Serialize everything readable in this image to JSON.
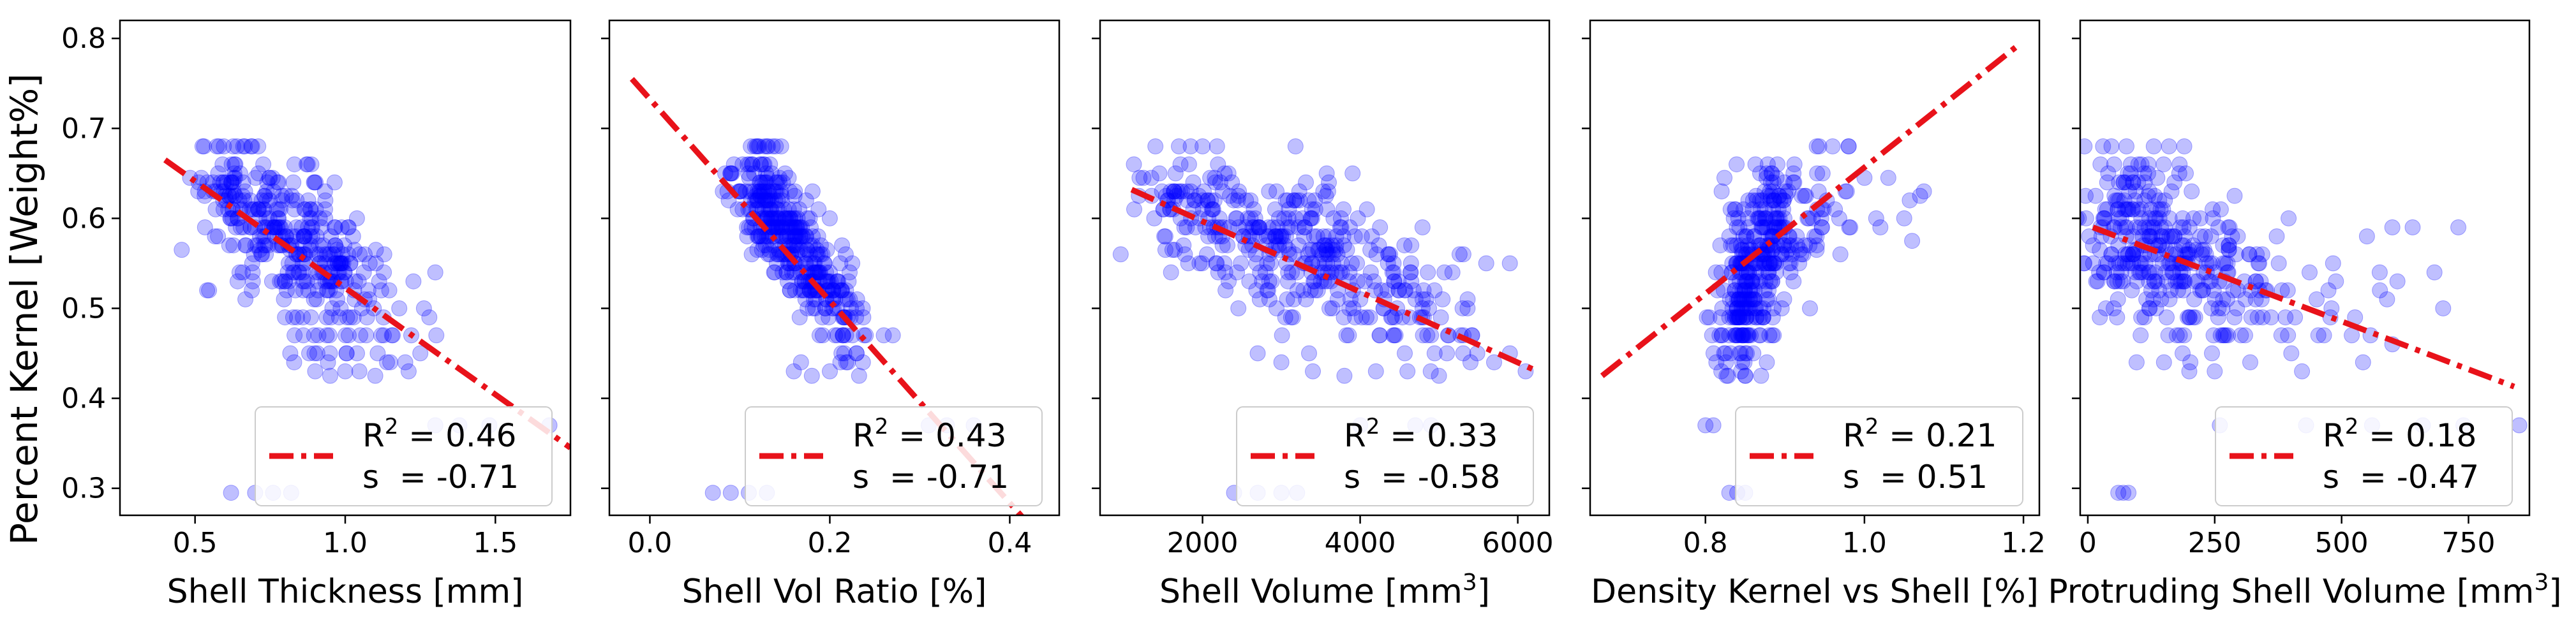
{
  "figure": {
    "shared_ylabel": "Percent Kernel [Weight%]"
  },
  "chart_data": [
    {
      "type": "scatter",
      "xlabel": "Shell Thickness [mm]",
      "ylabel": "Percent Kernel [Weight%]",
      "xlim": [
        0.25,
        1.75
      ],
      "ylim": [
        0.27,
        0.82
      ],
      "xticks": [
        {
          "v": 0.5,
          "label": "0.5"
        },
        {
          "v": 1.0,
          "label": "1.0"
        },
        {
          "v": 1.5,
          "label": "1.5"
        }
      ],
      "yticks": [
        {
          "v": 0.3,
          "label": "0.3"
        },
        {
          "v": 0.4,
          "label": "0.4"
        },
        {
          "v": 0.5,
          "label": "0.5"
        },
        {
          "v": 0.6,
          "label": "0.6"
        },
        {
          "v": 0.7,
          "label": "0.7"
        },
        {
          "v": 0.8,
          "label": "0.8"
        }
      ],
      "point_color": "#0000ff",
      "line_color": "#e8121a",
      "fit_line": {
        "x": [
          0.4,
          1.75
        ],
        "y": [
          0.665,
          0.345
        ]
      },
      "clusters": [
        {
          "cx": 0.82,
          "cy": 0.575,
          "sx": 0.14,
          "sy": 0.045,
          "n": 260,
          "rho": -0.55
        },
        {
          "cx": 1.02,
          "cy": 0.51,
          "sx": 0.13,
          "sy": 0.04,
          "n": 60,
          "rho": -0.3
        },
        {
          "cx": 0.62,
          "cy": 0.64,
          "sx": 0.06,
          "sy": 0.025,
          "n": 50,
          "rho": 0
        }
      ],
      "extra_points": [
        {
          "x": 0.53,
          "y": 0.68
        },
        {
          "x": 0.58,
          "y": 0.68
        },
        {
          "x": 0.64,
          "y": 0.68
        },
        {
          "x": 0.9,
          "y": 0.43
        },
        {
          "x": 0.95,
          "y": 0.425
        },
        {
          "x": 1.0,
          "y": 0.43
        },
        {
          "x": 1.1,
          "y": 0.425
        },
        {
          "x": 1.15,
          "y": 0.44
        },
        {
          "x": 1.2,
          "y": 0.44
        },
        {
          "x": 1.25,
          "y": 0.45
        },
        {
          "x": 1.22,
          "y": 0.47
        },
        {
          "x": 1.28,
          "y": 0.49
        },
        {
          "x": 1.3,
          "y": 0.54
        },
        {
          "x": 1.07,
          "y": 0.47
        },
        {
          "x": 1.12,
          "y": 0.47
        },
        {
          "x": 1.18,
          "y": 0.5
        },
        {
          "x": 1.13,
          "y": 0.56
        },
        {
          "x": 0.83,
          "y": 0.44
        },
        {
          "x": 0.88,
          "y": 0.45
        },
        {
          "x": 1.3,
          "y": 0.37
        },
        {
          "x": 1.38,
          "y": 0.37
        },
        {
          "x": 1.48,
          "y": 0.37
        },
        {
          "x": 1.68,
          "y": 0.37
        },
        {
          "x": 0.62,
          "y": 0.295
        },
        {
          "x": 0.7,
          "y": 0.295
        },
        {
          "x": 0.76,
          "y": 0.295
        },
        {
          "x": 0.82,
          "y": 0.295
        }
      ],
      "legend": {
        "r2_label": "R",
        "r2_value": "= 0.46",
        "s_label": "s",
        "s_value": "= -0.71",
        "placement": "lower-right"
      }
    },
    {
      "type": "scatter",
      "xlabel": "Shell Vol Ratio [%]",
      "ylabel": "",
      "xlim": [
        -0.045,
        0.455
      ],
      "ylim": [
        0.27,
        0.82
      ],
      "xticks": [
        {
          "v": 0.0,
          "label": "0.0"
        },
        {
          "v": 0.2,
          "label": "0.2"
        },
        {
          "v": 0.4,
          "label": "0.4"
        }
      ],
      "yticks": [
        {
          "v": 0.3,
          "label": ""
        },
        {
          "v": 0.4,
          "label": ""
        },
        {
          "v": 0.5,
          "label": ""
        },
        {
          "v": 0.6,
          "label": ""
        },
        {
          "v": 0.7,
          "label": ""
        },
        {
          "v": 0.8,
          "label": ""
        }
      ],
      "point_color": "#0000ff",
      "line_color": "#e8121a",
      "fit_line": {
        "x": [
          -0.02,
          0.43
        ],
        "y": [
          0.755,
          0.25
        ]
      },
      "clusters": [
        {
          "cx": 0.16,
          "cy": 0.57,
          "sx": 0.032,
          "sy": 0.05,
          "n": 270,
          "rho": -0.75
        },
        {
          "cx": 0.13,
          "cy": 0.62,
          "sx": 0.018,
          "sy": 0.03,
          "n": 60,
          "rho": -0.3
        },
        {
          "cx": 0.2,
          "cy": 0.5,
          "sx": 0.02,
          "sy": 0.035,
          "n": 50,
          "rho": -0.4
        }
      ],
      "extra_points": [
        {
          "x": 0.12,
          "y": 0.68
        },
        {
          "x": 0.13,
          "y": 0.68
        },
        {
          "x": 0.14,
          "y": 0.68
        },
        {
          "x": 0.16,
          "y": 0.43
        },
        {
          "x": 0.18,
          "y": 0.425
        },
        {
          "x": 0.2,
          "y": 0.43
        },
        {
          "x": 0.22,
          "y": 0.44
        },
        {
          "x": 0.24,
          "y": 0.47
        },
        {
          "x": 0.26,
          "y": 0.47
        },
        {
          "x": 0.27,
          "y": 0.47
        },
        {
          "x": 0.31,
          "y": 0.37
        },
        {
          "x": 0.33,
          "y": 0.37
        },
        {
          "x": 0.36,
          "y": 0.37
        },
        {
          "x": 0.07,
          "y": 0.295
        },
        {
          "x": 0.09,
          "y": 0.295
        },
        {
          "x": 0.11,
          "y": 0.295
        },
        {
          "x": 0.13,
          "y": 0.295
        }
      ],
      "legend": {
        "r2_label": "R",
        "r2_value": "= 0.43",
        "s_label": "s",
        "s_value": "= -0.71",
        "placement": "lower-right"
      }
    },
    {
      "type": "scatter",
      "xlabel": "Shell Volume [mm",
      "xlabel_sup": "3",
      "xlabel_suffix": "]",
      "ylabel": "",
      "xlim": [
        700,
        6400
      ],
      "ylim": [
        0.27,
        0.82
      ],
      "xticks": [
        {
          "v": 2000,
          "label": "2000"
        },
        {
          "v": 4000,
          "label": "4000"
        },
        {
          "v": 6000,
          "label": "6000"
        }
      ],
      "yticks": [
        {
          "v": 0.3,
          "label": ""
        },
        {
          "v": 0.4,
          "label": ""
        },
        {
          "v": 0.5,
          "label": ""
        },
        {
          "v": 0.6,
          "label": ""
        },
        {
          "v": 0.7,
          "label": ""
        },
        {
          "v": 0.8,
          "label": ""
        }
      ],
      "point_color": "#0000ff",
      "line_color": "#e8121a",
      "fit_line": {
        "x": [
          1100,
          6200
        ],
        "y": [
          0.632,
          0.432
        ]
      },
      "clusters": [
        {
          "cx": 3000,
          "cy": 0.57,
          "sx": 800,
          "sy": 0.045,
          "n": 280,
          "rho": -0.45
        },
        {
          "cx": 4400,
          "cy": 0.5,
          "sx": 700,
          "sy": 0.04,
          "n": 70,
          "rho": -0.3
        },
        {
          "cx": 1700,
          "cy": 0.625,
          "sx": 350,
          "sy": 0.03,
          "n": 40,
          "rho": 0
        }
      ],
      "extra_points": [
        {
          "x": 1700,
          "y": 0.68
        },
        {
          "x": 1850,
          "y": 0.68
        },
        {
          "x": 2000,
          "y": 0.68
        },
        {
          "x": 1200,
          "y": 0.645
        },
        {
          "x": 1350,
          "y": 0.645
        },
        {
          "x": 3400,
          "y": 0.43
        },
        {
          "x": 3800,
          "y": 0.425
        },
        {
          "x": 4200,
          "y": 0.43
        },
        {
          "x": 4600,
          "y": 0.43
        },
        {
          "x": 5000,
          "y": 0.425
        },
        {
          "x": 5400,
          "y": 0.44
        },
        {
          "x": 5700,
          "y": 0.44
        },
        {
          "x": 5900,
          "y": 0.45
        },
        {
          "x": 6100,
          "y": 0.43
        },
        {
          "x": 5600,
          "y": 0.55
        },
        {
          "x": 5900,
          "y": 0.55
        },
        {
          "x": 5300,
          "y": 0.5
        },
        {
          "x": 4000,
          "y": 0.37
        },
        {
          "x": 4700,
          "y": 0.37
        },
        {
          "x": 4900,
          "y": 0.37
        },
        {
          "x": 2400,
          "y": 0.295
        },
        {
          "x": 2700,
          "y": 0.295
        },
        {
          "x": 3000,
          "y": 0.295
        },
        {
          "x": 3200,
          "y": 0.295
        },
        {
          "x": 2700,
          "y": 0.45
        },
        {
          "x": 3000,
          "y": 0.44
        }
      ],
      "legend": {
        "r2_label": "R",
        "r2_value": "= 0.33",
        "s_label": "s",
        "s_value": "= -0.58",
        "placement": "lower-right"
      }
    },
    {
      "type": "scatter",
      "xlabel": "Density Kernel vs Shell [%]",
      "ylabel": "",
      "xlim": [
        0.655,
        1.22
      ],
      "ylim": [
        0.27,
        0.82
      ],
      "xticks": [
        {
          "v": 0.8,
          "label": "0.8"
        },
        {
          "v": 1.0,
          "label": "1.0"
        },
        {
          "v": 1.2,
          "label": "1.2"
        }
      ],
      "yticks": [
        {
          "v": 0.3,
          "label": ""
        },
        {
          "v": 0.4,
          "label": ""
        },
        {
          "v": 0.5,
          "label": ""
        },
        {
          "v": 0.6,
          "label": ""
        },
        {
          "v": 0.7,
          "label": ""
        },
        {
          "v": 0.8,
          "label": ""
        }
      ],
      "point_color": "#0000ff",
      "line_color": "#e8121a",
      "fit_line": {
        "x": [
          0.67,
          1.19
        ],
        "y": [
          0.425,
          0.79
        ]
      },
      "clusters": [
        {
          "cx": 0.87,
          "cy": 0.56,
          "sx": 0.025,
          "sy": 0.055,
          "n": 260,
          "rho": 0.45
        },
        {
          "cx": 0.84,
          "cy": 0.49,
          "sx": 0.012,
          "sy": 0.04,
          "n": 70,
          "rho": 0
        },
        {
          "cx": 0.95,
          "cy": 0.61,
          "sx": 0.035,
          "sy": 0.035,
          "n": 40,
          "rho": 0.3
        }
      ],
      "extra_points": [
        {
          "x": 0.94,
          "y": 0.68
        },
        {
          "x": 0.96,
          "y": 0.68
        },
        {
          "x": 0.98,
          "y": 0.68
        },
        {
          "x": 1.0,
          "y": 0.645
        },
        {
          "x": 1.03,
          "y": 0.645
        },
        {
          "x": 1.05,
          "y": 0.6
        },
        {
          "x": 1.07,
          "y": 0.625
        },
        {
          "x": 1.06,
          "y": 0.575
        },
        {
          "x": 1.02,
          "y": 0.59
        },
        {
          "x": 0.8,
          "y": 0.37
        },
        {
          "x": 0.81,
          "y": 0.37
        },
        {
          "x": 0.83,
          "y": 0.295
        },
        {
          "x": 0.84,
          "y": 0.295
        },
        {
          "x": 0.85,
          "y": 0.295
        },
        {
          "x": 0.82,
          "y": 0.43
        },
        {
          "x": 0.85,
          "y": 0.425
        },
        {
          "x": 0.87,
          "y": 0.425
        }
      ],
      "legend": {
        "r2_label": "R",
        "r2_value": "= 0.21",
        "s_label": "s",
        "s_value": "= 0.51",
        "placement": "lower-right"
      }
    },
    {
      "type": "scatter",
      "xlabel": "Protruding Shell Volume [mm",
      "xlabel_sup": "3",
      "xlabel_suffix": "]",
      "ylabel": "",
      "xlim": [
        -15,
        870
      ],
      "ylim": [
        0.27,
        0.82
      ],
      "xticks": [
        {
          "v": 0,
          "label": "0"
        },
        {
          "v": 250,
          "label": "250"
        },
        {
          "v": 500,
          "label": "500"
        },
        {
          "v": 750,
          "label": "750"
        }
      ],
      "yticks": [
        {
          "v": 0.3,
          "label": ""
        },
        {
          "v": 0.4,
          "label": ""
        },
        {
          "v": 0.5,
          "label": ""
        },
        {
          "v": 0.6,
          "label": ""
        },
        {
          "v": 0.7,
          "label": ""
        },
        {
          "v": 0.8,
          "label": ""
        }
      ],
      "point_color": "#0000ff",
      "line_color": "#e8121a",
      "fit_line": {
        "x": [
          10,
          840
        ],
        "y": [
          0.59,
          0.413
        ]
      },
      "clusters": [
        {
          "cx": 120,
          "cy": 0.57,
          "sx": 70,
          "sy": 0.05,
          "n": 260,
          "rho": -0.15
        },
        {
          "cx": 250,
          "cy": 0.53,
          "sx": 60,
          "sy": 0.045,
          "n": 60,
          "rho": -0.2
        },
        {
          "cx": 420,
          "cy": 0.52,
          "sx": 100,
          "sy": 0.05,
          "n": 45,
          "rho": -0.2
        }
      ],
      "extra_points": [
        {
          "x": 30,
          "y": 0.68
        },
        {
          "x": 130,
          "y": 0.68
        },
        {
          "x": 160,
          "y": 0.68
        },
        {
          "x": 190,
          "y": 0.68
        },
        {
          "x": 600,
          "y": 0.59
        },
        {
          "x": 640,
          "y": 0.59
        },
        {
          "x": 730,
          "y": 0.59
        },
        {
          "x": 550,
          "y": 0.58
        },
        {
          "x": 700,
          "y": 0.5
        },
        {
          "x": 600,
          "y": 0.46
        },
        {
          "x": 520,
          "y": 0.47
        },
        {
          "x": 480,
          "y": 0.5
        },
        {
          "x": 260,
          "y": 0.37
        },
        {
          "x": 430,
          "y": 0.37
        },
        {
          "x": 560,
          "y": 0.37
        },
        {
          "x": 660,
          "y": 0.37
        },
        {
          "x": 740,
          "y": 0.37
        },
        {
          "x": 850,
          "y": 0.37
        },
        {
          "x": 60,
          "y": 0.295
        },
        {
          "x": 70,
          "y": 0.295
        },
        {
          "x": 80,
          "y": 0.295
        },
        {
          "x": 150,
          "y": 0.44
        },
        {
          "x": 200,
          "y": 0.43
        },
        {
          "x": 250,
          "y": 0.43
        },
        {
          "x": 320,
          "y": 0.44
        }
      ],
      "legend": {
        "r2_label": "R",
        "r2_value": "= 0.18",
        "s_label": "s",
        "s_value": "= -0.47",
        "placement": "lower-right"
      }
    }
  ]
}
